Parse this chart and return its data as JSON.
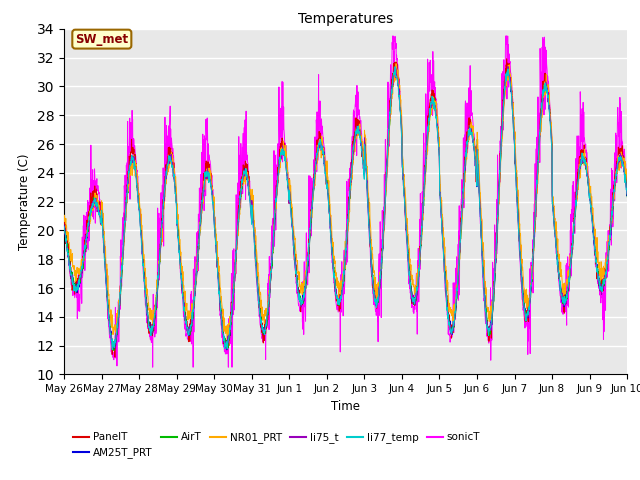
{
  "title": "Temperatures",
  "xlabel": "Time",
  "ylabel": "Temperature (C)",
  "ylim": [
    10,
    34
  ],
  "yticks": [
    10,
    12,
    14,
    16,
    18,
    20,
    22,
    24,
    26,
    28,
    30,
    32,
    34
  ],
  "date_labels": [
    "May 26",
    "May 27",
    "May 28",
    "May 29",
    "May 30",
    "May 31",
    "Jun 1",
    "Jun 2",
    "Jun 3",
    "Jun 4",
    "Jun 5",
    "Jun 6",
    "Jun 7",
    "Jun 8",
    "Jun 9",
    "Jun 10"
  ],
  "series_colors": {
    "PanelT": "#dd0000",
    "AM25T_PRT": "#0000dd",
    "AirT": "#00bb00",
    "NR01_PRT": "#ffaa00",
    "li75_t": "#9900bb",
    "li77_temp": "#00cccc",
    "sonicT": "#ff00ff"
  },
  "annotation_text": "SW_met",
  "annotation_facecolor": "#ffffcc",
  "annotation_edgecolor": "#996600",
  "annotation_textcolor": "#880000",
  "plot_bg_color": "#e8e8e8",
  "fig_bg_color": "#ffffff"
}
